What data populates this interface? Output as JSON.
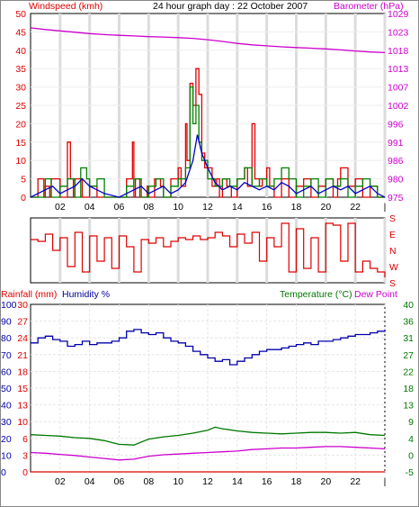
{
  "window": {
    "title": "24 hour graph day : 22 October 2007"
  },
  "colors": {
    "background": "#ffffff",
    "frame": "#000000",
    "grid": "#dcdcdc",
    "wind_gust": "#dd0000",
    "wind_avg": "#008000",
    "wind_speed2": "#0000cc",
    "barometer": "#cc00cc",
    "direction": "#dd0000",
    "humidity": "#0000aa",
    "temperature": "#007700",
    "dewpoint": "#cc00cc",
    "rainfall": "#dd0000"
  },
  "chart_data": [
    {
      "id": "wind_barometer",
      "type": "line",
      "title": "24 hour graph day : 22 October 2007",
      "ylabel_left": "Windspeed (kmh)",
      "ylabel_right": "Barometer (hPa)",
      "x_ticks": [
        "02",
        "04",
        "06",
        "08",
        "10",
        "12",
        "14",
        "16",
        "18",
        "20",
        "22",
        "|"
      ],
      "y_left_ticks": [
        "0",
        "5",
        "10",
        "15",
        "20",
        "25",
        "30",
        "35",
        "40",
        "45",
        "50"
      ],
      "y_left_range": [
        0,
        50
      ],
      "y_right_ticks": [
        "975",
        "980",
        "986",
        "991",
        "996",
        "1002",
        "1007",
        "1013",
        "1018",
        "1023",
        "1029"
      ],
      "y_right_range": [
        975,
        1029
      ],
      "grid": true,
      "series": [
        {
          "key": "gust",
          "step": true,
          "x": [
            0,
            0.5,
            0.9,
            1.0,
            1.3,
            1.4,
            2.0,
            2.5,
            2.7,
            2.9,
            3.0,
            3.5,
            4.0,
            4.5,
            5.0,
            5.5,
            6.0,
            6.5,
            6.9,
            7.0,
            7.1,
            7.4,
            7.9,
            8.0,
            8.4,
            8.8,
            9.0,
            9.5,
            10.0,
            10.2,
            10.5,
            10.6,
            10.8,
            11.0,
            11.2,
            11.4,
            11.6,
            11.8,
            12.0,
            12.3,
            12.6,
            12.8,
            13.0,
            13.3,
            13.6,
            14.0,
            14.5,
            14.7,
            15.0,
            15.2,
            15.5,
            15.7,
            16.0,
            16.2,
            16.5,
            17.0,
            17.5,
            18.0,
            18.5,
            19.0,
            19.5,
            20.0,
            20.5,
            20.8,
            21.0,
            21.5,
            22.0,
            22.5,
            23.0,
            23.5,
            24.0
          ],
          "values": [
            0,
            5,
            0,
            3,
            0,
            5,
            0,
            15,
            5,
            0,
            5,
            0,
            3,
            0,
            0,
            0,
            0,
            5,
            15,
            0,
            5,
            0,
            3,
            0,
            5,
            3,
            0,
            5,
            8,
            3,
            20,
            10,
            31,
            25,
            35,
            28,
            12,
            8,
            8,
            3,
            5,
            0,
            5,
            3,
            0,
            5,
            8,
            3,
            20,
            5,
            3,
            5,
            8,
            3,
            0,
            5,
            0,
            3,
            5,
            0,
            3,
            5,
            0,
            5,
            8,
            3,
            5,
            0,
            3,
            0,
            0
          ]
        },
        {
          "key": "average",
          "step": true,
          "x": [
            0,
            1.0,
            1.4,
            2.0,
            2.5,
            3.0,
            3.4,
            3.8,
            4.0,
            4.5,
            5.0,
            6.0,
            6.5,
            7.0,
            7.5,
            8.0,
            8.5,
            9.0,
            9.5,
            10.0,
            10.5,
            10.8,
            11.0,
            11.2,
            11.4,
            11.6,
            12.0,
            12.5,
            13.0,
            13.5,
            14.0,
            14.5,
            15.0,
            15.5,
            16.0,
            16.5,
            17.0,
            17.5,
            18.0,
            18.5,
            19.0,
            19.5,
            20.0,
            20.5,
            21.0,
            21.5,
            22.0,
            22.5,
            23.0,
            23.5,
            24.0
          ],
          "values": [
            0,
            5,
            0,
            3,
            5,
            0,
            8,
            5,
            3,
            5,
            0,
            0,
            3,
            5,
            0,
            3,
            5,
            0,
            3,
            5,
            8,
            30,
            20,
            25,
            15,
            10,
            5,
            3,
            5,
            3,
            5,
            8,
            3,
            5,
            3,
            5,
            8,
            5,
            0,
            3,
            5,
            0,
            5,
            3,
            5,
            0,
            3,
            5,
            3,
            0,
            0
          ]
        },
        {
          "key": "speed",
          "step": false,
          "x": [
            0,
            1.0,
            1.5,
            2.0,
            2.5,
            3.0,
            3.5,
            4.0,
            4.5,
            5.0,
            6.0,
            6.5,
            7.0,
            7.5,
            8.0,
            8.5,
            9.0,
            9.5,
            10.0,
            10.5,
            11.0,
            11.3,
            11.6,
            12.0,
            12.5,
            13.0,
            13.5,
            14.0,
            14.5,
            15.0,
            15.5,
            16.0,
            16.5,
            17.0,
            17.5,
            18.0,
            18.5,
            19.0,
            19.5,
            20.0,
            20.5,
            21.0,
            21.5,
            22.0,
            22.5,
            23.0,
            23.5,
            24.0
          ],
          "values": [
            0,
            2,
            3,
            1,
            2,
            3,
            5,
            3,
            2,
            1,
            0,
            1,
            2,
            3,
            1,
            2,
            3,
            1,
            2,
            4,
            10,
            17,
            12,
            8,
            4,
            2,
            3,
            2,
            4,
            3,
            2,
            3,
            2,
            4,
            3,
            1,
            2,
            3,
            1,
            2,
            3,
            2,
            3,
            1,
            2,
            3,
            1,
            0
          ]
        },
        {
          "key": "barometer",
          "step": false,
          "axis": "right",
          "x": [
            0,
            1,
            2,
            3,
            4,
            5,
            6,
            7,
            8,
            9,
            10,
            11,
            12,
            13,
            14,
            15,
            16,
            17,
            18,
            19,
            20,
            21,
            22,
            23,
            24
          ],
          "values": [
            1024.8,
            1024.3,
            1023.9,
            1023.5,
            1023.1,
            1022.8,
            1022.6,
            1022.4,
            1022.2,
            1022.1,
            1021.9,
            1021.7,
            1021.3,
            1020.8,
            1020.2,
            1019.8,
            1019.5,
            1019.2,
            1019.0,
            1018.8,
            1018.6,
            1018.3,
            1018.0,
            1017.7,
            1017.5
          ]
        }
      ]
    },
    {
      "id": "direction",
      "type": "line",
      "y_ticks": [
        "S",
        "E",
        "N",
        "W",
        "S"
      ],
      "y_range": [
        0,
        360
      ],
      "grid": true,
      "series": [
        {
          "key": "direction",
          "x": [
            0,
            0.5,
            1.0,
            1.5,
            2.0,
            2.5,
            3.0,
            3.5,
            4.0,
            4.5,
            5.0,
            5.5,
            6.0,
            6.5,
            7.0,
            7.5,
            8.0,
            8.5,
            9.0,
            9.5,
            10.0,
            10.5,
            11.0,
            11.5,
            12.0,
            12.5,
            13.0,
            13.5,
            14.0,
            14.5,
            15.0,
            15.5,
            16.0,
            16.5,
            17.0,
            17.5,
            18.0,
            18.5,
            19.0,
            19.5,
            20.0,
            20.5,
            21.0,
            21.5,
            22.0,
            22.5,
            23.0,
            23.5,
            24.0
          ],
          "values": [
            240,
            230,
            270,
            180,
            250,
            90,
            280,
            60,
            260,
            120,
            250,
            80,
            260,
            200,
            60,
            240,
            220,
            250,
            200,
            230,
            250,
            240,
            260,
            240,
            250,
            280,
            260,
            200,
            270,
            220,
            280,
            120,
            250,
            200,
            330,
            60,
            300,
            80,
            250,
            60,
            330,
            320,
            120,
            330,
            60,
            120,
            80,
            60,
            30
          ]
        }
      ]
    },
    {
      "id": "temp_humidity",
      "type": "line",
      "ylabel_left_1": "Rainfall (mm)",
      "ylabel_left_2": "Humidity %",
      "ylabel_right_1": "Temperature (°C)",
      "ylabel_right_2": "Dew Point",
      "x_ticks": [
        "02",
        "04",
        "06",
        "08",
        "10",
        "12",
        "14",
        "16",
        "18",
        "20",
        "22",
        "|"
      ],
      "humidity_ticks": [
        "100",
        "90",
        "80",
        "70",
        "60",
        "50",
        "40",
        "30",
        "20",
        "10",
        "0"
      ],
      "humidity_range": [
        0,
        100
      ],
      "rain_ticks": [
        "30",
        "27",
        "24",
        "21",
        "18",
        "15",
        "13",
        "10",
        "6",
        "3",
        "0"
      ],
      "rain_range": [
        0,
        30
      ],
      "temp_ticks": [
        "40",
        "36",
        "31",
        "27",
        "22",
        "18",
        "13",
        "9",
        "4",
        "0",
        "-5"
      ],
      "temp_range": [
        -5,
        40
      ],
      "grid": true,
      "series": [
        {
          "key": "humidity",
          "x": [
            0,
            0.5,
            1.0,
            1.5,
            2.0,
            2.5,
            3.0,
            3.5,
            4.0,
            4.5,
            5.0,
            5.5,
            6.0,
            6.5,
            7.0,
            7.5,
            8.0,
            8.5,
            9.0,
            9.5,
            10.0,
            10.5,
            11.0,
            11.5,
            12.0,
            12.5,
            13.0,
            13.5,
            14.0,
            14.5,
            15.0,
            15.5,
            16.0,
            16.5,
            17.0,
            17.5,
            18.0,
            18.5,
            19.0,
            19.5,
            20.0,
            20.5,
            21.0,
            21.5,
            22.0,
            22.5,
            23.0,
            23.5,
            24.0
          ],
          "values": [
            77,
            80,
            81,
            79,
            78,
            75,
            76,
            78,
            76,
            77,
            77,
            78,
            80,
            84,
            85,
            83,
            82,
            83,
            80,
            78,
            77,
            75,
            72,
            70,
            68,
            66,
            67,
            64,
            66,
            68,
            70,
            72,
            73,
            73,
            74,
            75,
            76,
            77,
            76,
            78,
            78,
            79,
            80,
            81,
            82,
            82,
            83,
            84,
            85
          ]
        },
        {
          "key": "temperature",
          "x": [
            0,
            1,
            2,
            3,
            4,
            5,
            6,
            7,
            8,
            9,
            10,
            11,
            12,
            12.5,
            13,
            14,
            15,
            16,
            17,
            18,
            19,
            20,
            21,
            22,
            23,
            24
          ],
          "values": [
            5,
            4.8,
            4.6,
            4.2,
            4.0,
            3.4,
            2.4,
            2.2,
            3.8,
            4.4,
            4.8,
            5.4,
            6.2,
            7.0,
            6.6,
            6.0,
            5.6,
            5.4,
            5.2,
            5.4,
            5.6,
            5.6,
            5.4,
            5.6,
            5.0,
            4.8
          ]
        },
        {
          "key": "dewpoint",
          "x": [
            0,
            1,
            2,
            3,
            4,
            5,
            6,
            7,
            8,
            9,
            10,
            11,
            12,
            13,
            14,
            15,
            16,
            17,
            18,
            19,
            20,
            21,
            22,
            23,
            24
          ],
          "values": [
            0.2,
            0.0,
            -0.3,
            -0.6,
            -1.0,
            -1.4,
            -1.8,
            -1.6,
            -0.8,
            -0.4,
            -0.2,
            0.0,
            0.2,
            0.4,
            0.6,
            1.0,
            1.2,
            1.4,
            1.4,
            1.6,
            1.8,
            1.8,
            1.6,
            1.4,
            1.2
          ]
        },
        {
          "key": "rainfall",
          "x": [
            0,
            24
          ],
          "values": [
            0,
            0
          ]
        }
      ]
    }
  ]
}
